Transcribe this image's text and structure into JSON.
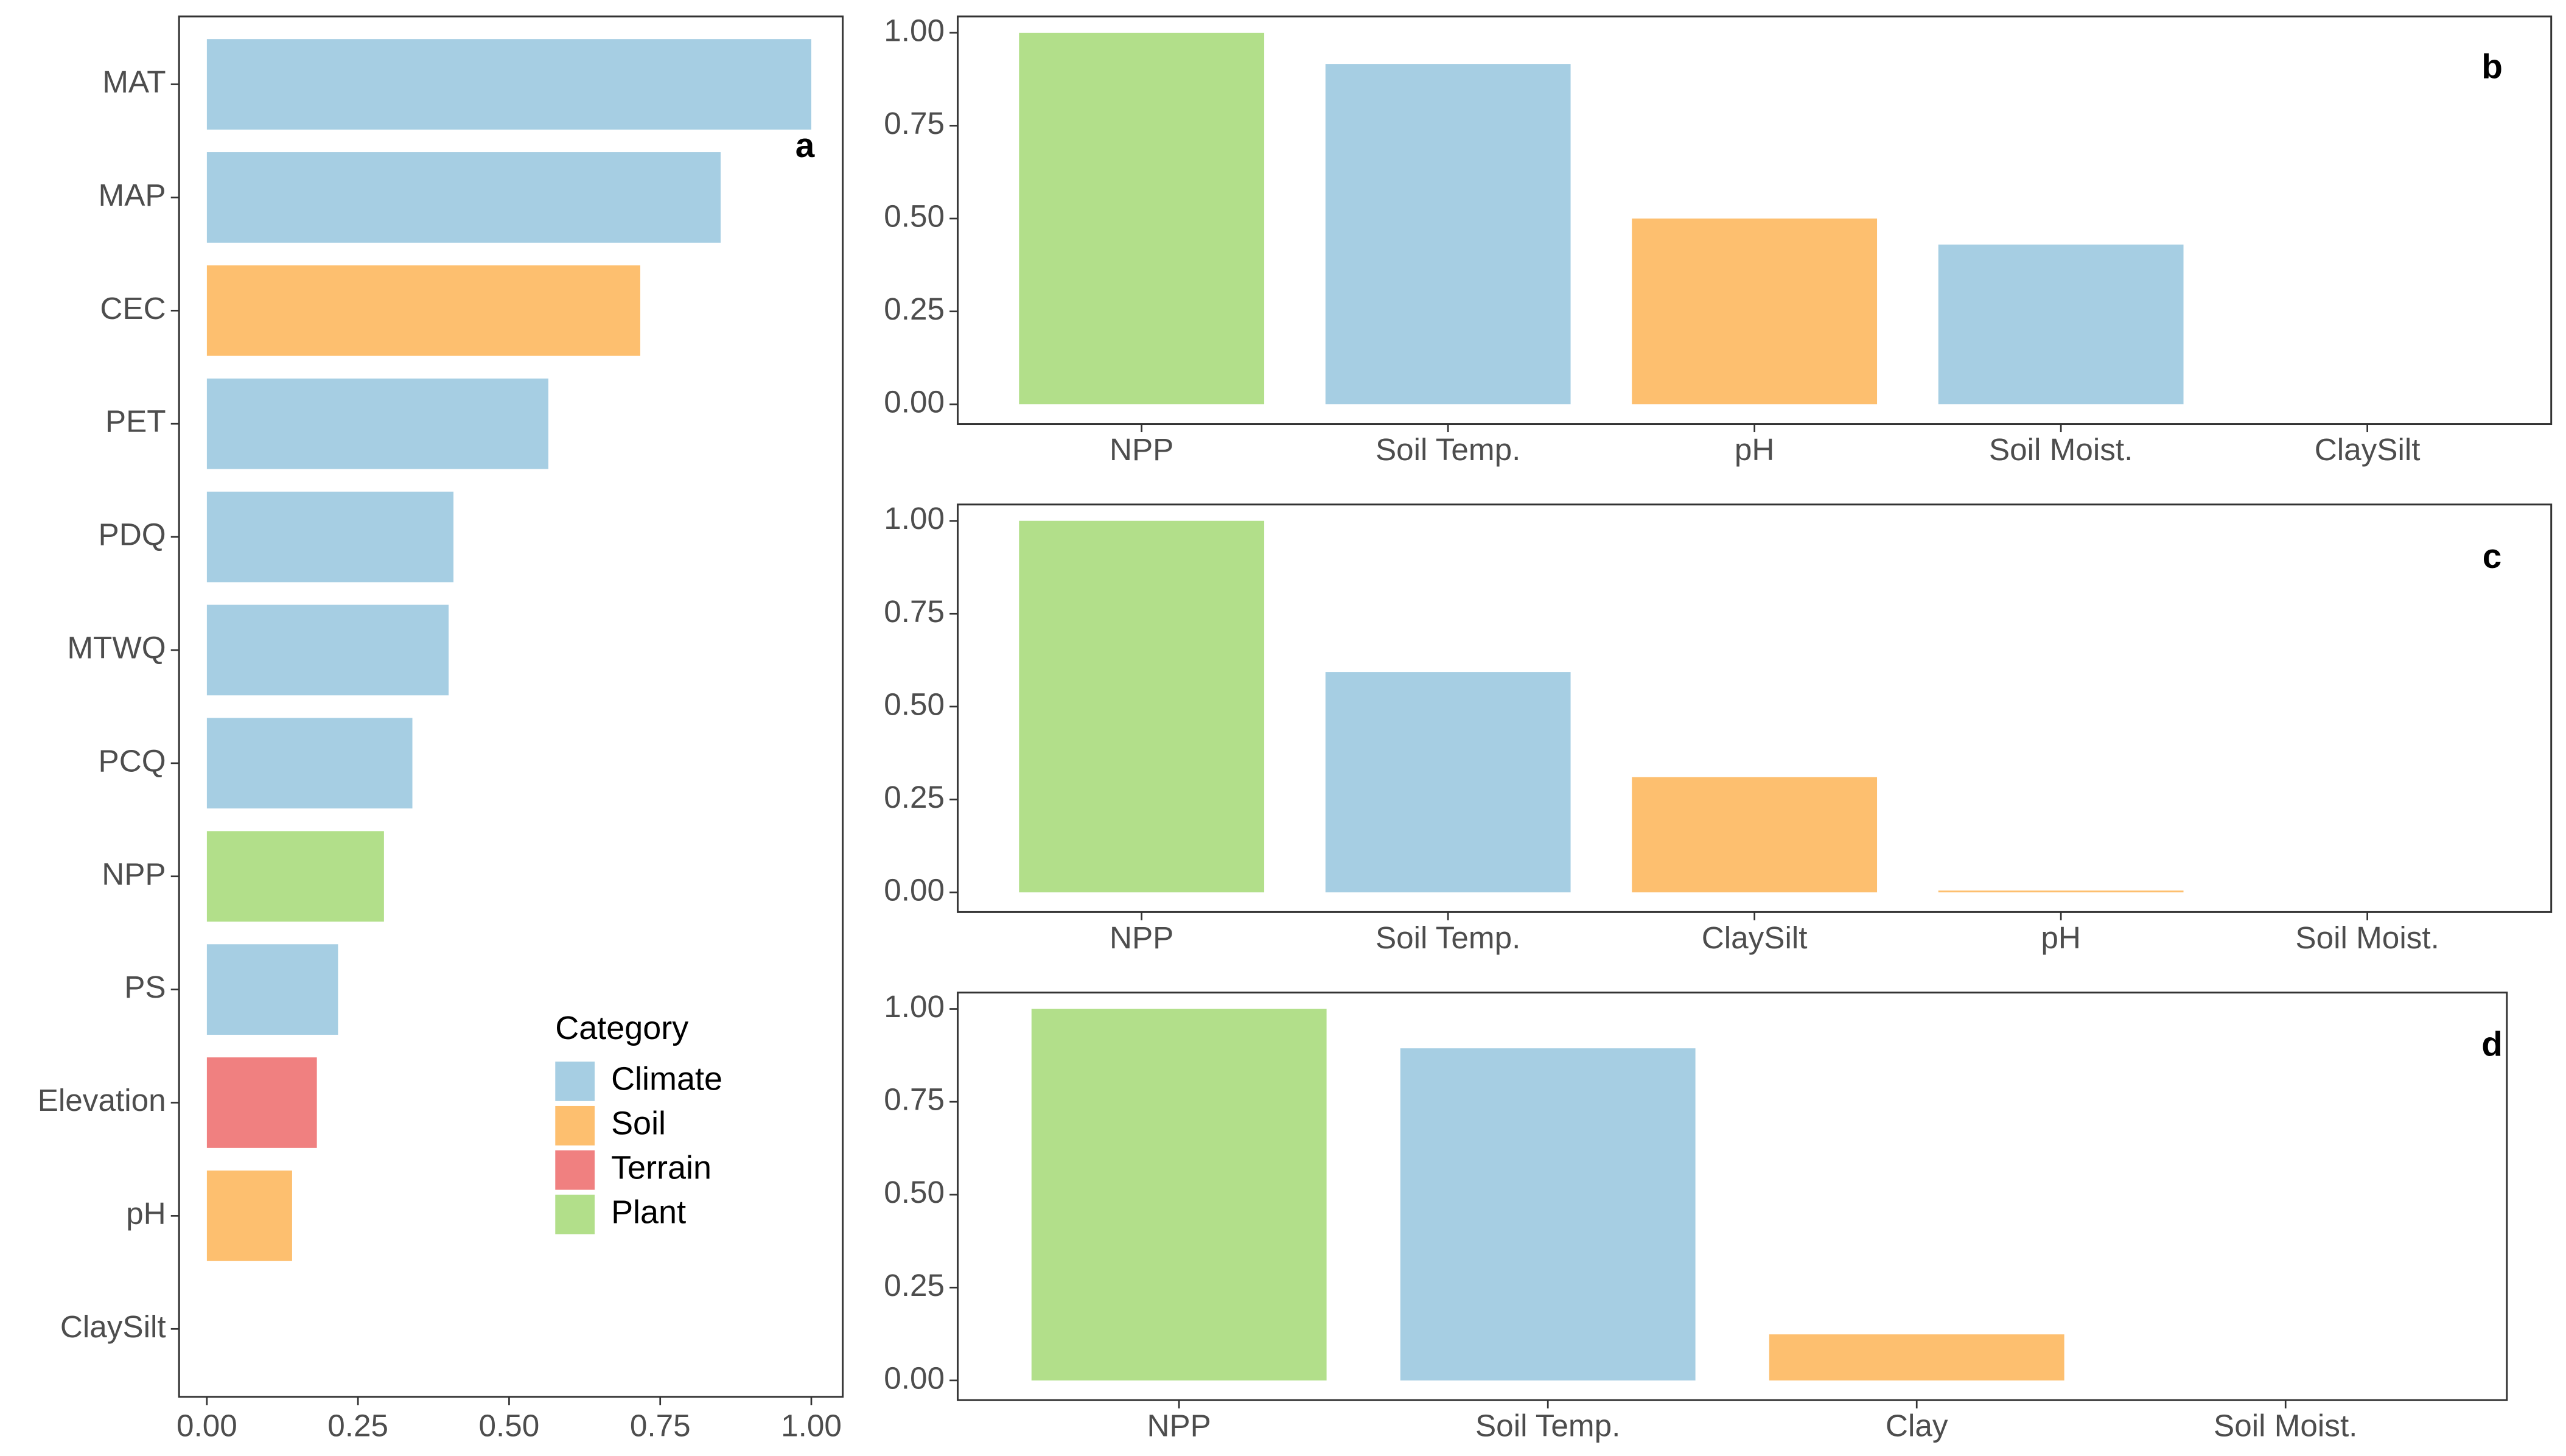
{
  "chart_data": [
    {
      "type": "bar",
      "orientation": "horizontal",
      "label": "a",
      "categories": [
        "MAT",
        "MAP",
        "CEC",
        "PET",
        "PDQ",
        "MTWQ",
        "PCQ",
        "NPP",
        "PS",
        "Elevation",
        "pH",
        "ClaySilt"
      ],
      "values": [
        1.0,
        0.85,
        0.717,
        0.565,
        0.408,
        0.4,
        0.34,
        0.293,
        0.217,
        0.182,
        0.141,
        0
      ],
      "colors": [
        "#a6cee3",
        "#a6cee3",
        "#fdbf6f",
        "#a6cee3",
        "#a6cee3",
        "#a6cee3",
        "#a6cee3",
        "#b2df8a",
        "#a6cee3",
        "#f08080",
        "#fdbf6f",
        "#fdbf6f"
      ],
      "xlim": [
        -0.046,
        1.052
      ],
      "xticks": [
        {
          "value": 0,
          "label": "0.00"
        },
        {
          "value": 0.25,
          "label": "0.25"
        },
        {
          "value": 0.5,
          "label": "0.50"
        },
        {
          "value": 0.75,
          "label": "0.75"
        },
        {
          "value": 1,
          "label": "1.00"
        }
      ],
      "legend": {
        "title": "Category",
        "items": [
          {
            "name": "Climate",
            "color": "#a6cee3"
          },
          {
            "name": "Soil",
            "color": "#fdbf6f"
          },
          {
            "name": "Terrain",
            "color": "#f08080"
          },
          {
            "name": "Plant",
            "color": "#b2df8a"
          }
        ]
      }
    },
    {
      "type": "bar",
      "label": "b",
      "categories": [
        "NPP",
        "Soil Temp.",
        "pH",
        "Soil Moist.",
        "ClaySilt"
      ],
      "values": [
        1.0,
        0.916,
        0.5,
        0.43,
        0
      ],
      "colors": [
        "#b2df8a",
        "#a6cee3",
        "#fdbf6f",
        "#a6cee3",
        "#fdbf6f"
      ],
      "ylim": [
        -0.053,
        1.044
      ],
      "yticks": [
        {
          "value": 0,
          "label": "0.00"
        },
        {
          "value": 0.25,
          "label": "0.25"
        },
        {
          "value": 0.5,
          "label": "0.50"
        },
        {
          "value": 0.75,
          "label": "0.75"
        },
        {
          "value": 1,
          "label": "1.00"
        }
      ]
    },
    {
      "type": "bar",
      "label": "c",
      "categories": [
        "NPP",
        "Soil Temp.",
        "ClaySilt",
        "pH",
        "Soil Moist."
      ],
      "values": [
        1.0,
        0.593,
        0.31,
        0.005,
        0
      ],
      "colors": [
        "#b2df8a",
        "#a6cee3",
        "#fdbf6f",
        "#fdbf6f",
        "#a6cee3"
      ],
      "ylim": [
        -0.053,
        1.044
      ],
      "yticks": [
        {
          "value": 0,
          "label": "0.00"
        },
        {
          "value": 0.25,
          "label": "0.25"
        },
        {
          "value": 0.5,
          "label": "0.50"
        },
        {
          "value": 0.75,
          "label": "0.75"
        },
        {
          "value": 1,
          "label": "1.00"
        }
      ]
    },
    {
      "type": "bar",
      "label": "d",
      "categories": [
        "NPP",
        "Soil Temp.",
        "Clay",
        "Soil Moist."
      ],
      "values": [
        1.0,
        0.894,
        0.124,
        0
      ],
      "colors": [
        "#b2df8a",
        "#a6cee3",
        "#fdbf6f",
        "#a6cee3"
      ],
      "ylim": [
        -0.053,
        1.044
      ],
      "yticks": [
        {
          "value": 0,
          "label": "0.00"
        },
        {
          "value": 0.25,
          "label": "0.25"
        },
        {
          "value": 0.5,
          "label": "0.50"
        },
        {
          "value": 0.75,
          "label": "0.75"
        },
        {
          "value": 1,
          "label": "1.00"
        }
      ]
    }
  ]
}
